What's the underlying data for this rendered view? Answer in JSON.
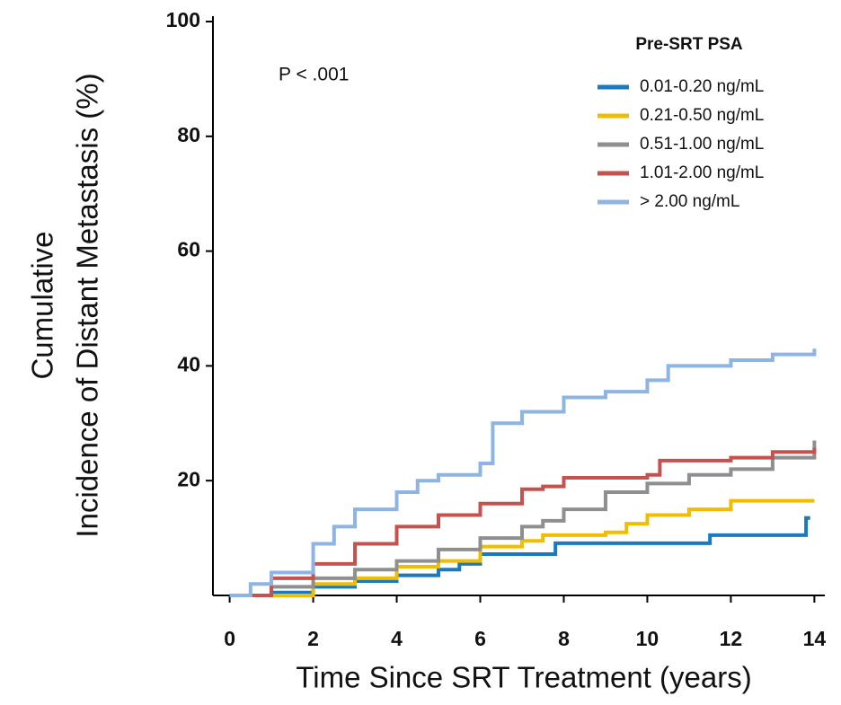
{
  "chart_data": {
    "type": "step",
    "annotation": "P < .001",
    "xlabel": "Time Since SRT Treatment (years)",
    "ylabel": [
      "Cumulative",
      "Incidence of Distant Metastasis (%)"
    ],
    "legend_title": "Pre-SRT PSA",
    "legend": "upper right",
    "xlim": [
      -0.4,
      14.25
    ],
    "ylim": [
      0,
      100
    ],
    "xticks": [
      0,
      2,
      4,
      6,
      8,
      10,
      12,
      14
    ],
    "yticks": [
      20,
      40,
      60,
      80,
      100
    ],
    "series": [
      {
        "name": "0.01-0.20 ng/mL",
        "color": "#1a7abf",
        "x": [
          0,
          1,
          2,
          3,
          4,
          5,
          5.5,
          6,
          7.8,
          11.5,
          13.8,
          13.9
        ],
        "values": [
          0,
          0.5,
          1.5,
          2.5,
          3.5,
          4.5,
          5.5,
          7.2,
          9.1,
          10.5,
          13.5,
          13.5
        ]
      },
      {
        "name": "0.21-0.50 ng/mL",
        "color": "#f0bd00",
        "x": [
          0,
          2,
          3,
          4,
          5,
          6,
          7,
          7.5,
          9,
          9.5,
          10,
          11,
          12,
          14
        ],
        "values": [
          0,
          2,
          3,
          5,
          6,
          8.5,
          9.5,
          10.5,
          11,
          12.5,
          14,
          15,
          16.5,
          16.5
        ]
      },
      {
        "name": "0.51-1.00 ng/mL",
        "color": "#8f8f8f",
        "x": [
          0,
          1,
          2,
          3,
          4,
          5,
          6,
          7,
          7.5,
          8,
          9,
          10,
          11,
          12,
          13,
          14
        ],
        "values": [
          0,
          1.5,
          3,
          4.5,
          6,
          8,
          10,
          12,
          13,
          15,
          18,
          19.5,
          21,
          22,
          24,
          27
        ]
      },
      {
        "name": "1.01-2.00 ng/mL",
        "color": "#c4524e",
        "x": [
          0,
          1,
          2,
          3,
          4,
          5,
          6,
          7,
          7.5,
          8,
          10,
          10.3,
          12,
          13,
          14
        ],
        "values": [
          0,
          3,
          5.5,
          9,
          12,
          14,
          16,
          18.5,
          19,
          20.5,
          21,
          23.5,
          24,
          25,
          25.7
        ]
      },
      {
        "name": "> 2.00 ng/mL",
        "color": "#8db4e2",
        "x": [
          0,
          0.5,
          1,
          2,
          2.5,
          3,
          4,
          4.5,
          5,
          6,
          6.3,
          7,
          8,
          9,
          10,
          10.5,
          12,
          13,
          14
        ],
        "values": [
          0,
          2,
          4,
          9,
          12,
          15,
          18,
          20,
          21,
          23,
          30,
          32,
          34.5,
          35.5,
          37.5,
          40,
          41,
          42,
          43
        ]
      }
    ]
  }
}
